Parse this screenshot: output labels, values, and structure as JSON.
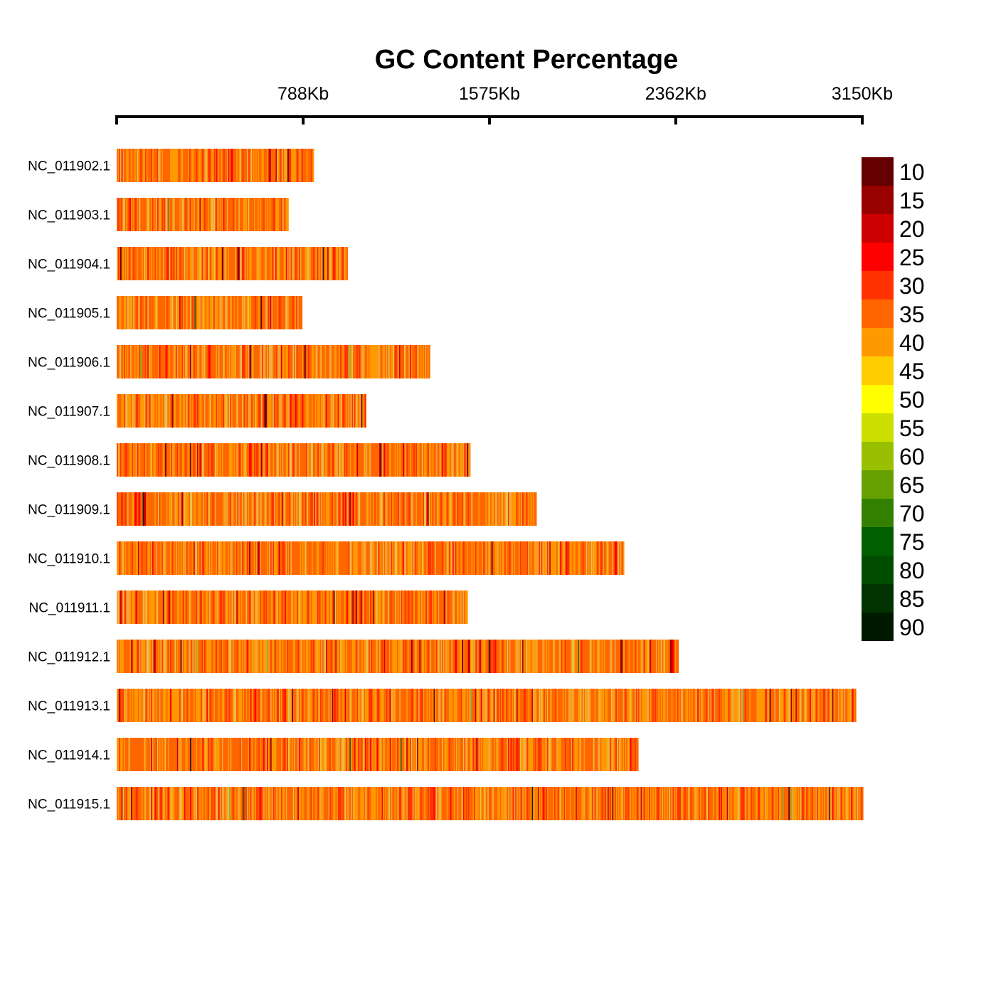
{
  "chart_data": {
    "type": "heatmap",
    "title": "GC Content Percentage",
    "x_axis": {
      "range": [
        0,
        3150
      ],
      "unit": "Kb",
      "ticks": [
        {
          "value": 0,
          "label": ""
        },
        {
          "value": 788,
          "label": "788Kb"
        },
        {
          "value": 1575,
          "label": "1575Kb"
        },
        {
          "value": 2362,
          "label": "2362Kb"
        },
        {
          "value": 3150,
          "label": "3150Kb"
        }
      ]
    },
    "chromosomes": [
      {
        "name": "NC_011902.1",
        "length_kb": 832
      },
      {
        "name": "NC_011903.1",
        "length_kb": 725
      },
      {
        "name": "NC_011904.1",
        "length_kb": 975
      },
      {
        "name": "NC_011905.1",
        "length_kb": 783
      },
      {
        "name": "NC_011906.1",
        "length_kb": 1323
      },
      {
        "name": "NC_011907.1",
        "length_kb": 1053
      },
      {
        "name": "NC_011908.1",
        "length_kb": 1494
      },
      {
        "name": "NC_011909.1",
        "length_kb": 1773
      },
      {
        "name": "NC_011910.1",
        "length_kb": 2143
      },
      {
        "name": "NC_011911.1",
        "length_kb": 1482
      },
      {
        "name": "NC_011912.1",
        "length_kb": 2373
      },
      {
        "name": "NC_011913.1",
        "length_kb": 3123
      },
      {
        "name": "NC_011914.1",
        "length_kb": 2203
      },
      {
        "name": "NC_011915.1",
        "length_kb": 3153
      }
    ],
    "gc_distribution": {
      "typical_range": [
        30,
        45
      ],
      "dominant_values": [
        35,
        40
      ],
      "low_gc_streaks": [
        10,
        15,
        20
      ],
      "occasional_high": [
        50,
        55,
        60,
        85
      ]
    },
    "legend": {
      "position": "right",
      "levels": [
        {
          "value": "10",
          "color": "#650000"
        },
        {
          "value": "15",
          "color": "#990000"
        },
        {
          "value": "20",
          "color": "#cc0000"
        },
        {
          "value": "25",
          "color": "#ff0000"
        },
        {
          "value": "30",
          "color": "#ff3300"
        },
        {
          "value": "35",
          "color": "#ff6600"
        },
        {
          "value": "40",
          "color": "#ff9900"
        },
        {
          "value": "45",
          "color": "#ffcc00"
        },
        {
          "value": "50",
          "color": "#ffff00"
        },
        {
          "value": "55",
          "color": "#cce000"
        },
        {
          "value": "60",
          "color": "#99c000"
        },
        {
          "value": "65",
          "color": "#66a000"
        },
        {
          "value": "70",
          "color": "#338000"
        },
        {
          "value": "75",
          "color": "#006000"
        },
        {
          "value": "80",
          "color": "#004d00"
        },
        {
          "value": "85",
          "color": "#003300"
        },
        {
          "value": "90",
          "color": "#001a00"
        }
      ]
    }
  }
}
